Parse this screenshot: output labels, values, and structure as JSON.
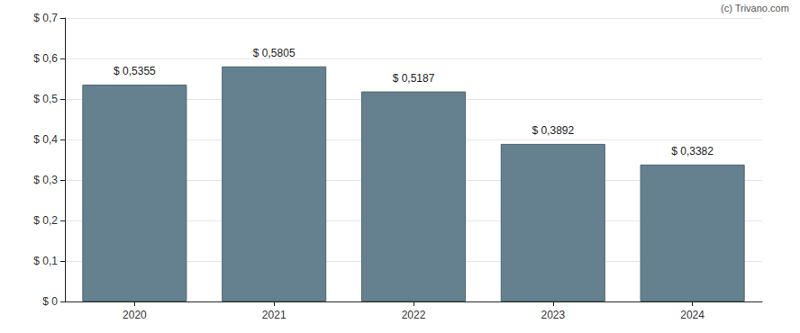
{
  "chart_data": {
    "type": "bar",
    "annotation": "(c) Trivano.com",
    "categories": [
      "2020",
      "2021",
      "2022",
      "2023",
      "2024"
    ],
    "values": [
      0.5355,
      0.5805,
      0.5187,
      0.3892,
      0.3382
    ],
    "value_labels": [
      "$ 0,5355",
      "$ 0,5805",
      "$ 0,5187",
      "$ 0,3892",
      "$ 0,3382"
    ],
    "color": "#65808f",
    "ylim": [
      0,
      0.7
    ],
    "yticks": [
      {
        "value": 0,
        "label": "$ 0"
      },
      {
        "value": 0.1,
        "label": "$ 0,1"
      },
      {
        "value": 0.2,
        "label": "$ 0,2"
      },
      {
        "value": 0.3,
        "label": "$ 0,3"
      },
      {
        "value": 0.4,
        "label": "$ 0,4"
      },
      {
        "value": 0.5,
        "label": "$ 0,5"
      },
      {
        "value": 0.6,
        "label": "$ 0,6"
      },
      {
        "value": 0.7,
        "label": "$ 0,7"
      }
    ],
    "grid": true,
    "data_labels": true
  }
}
